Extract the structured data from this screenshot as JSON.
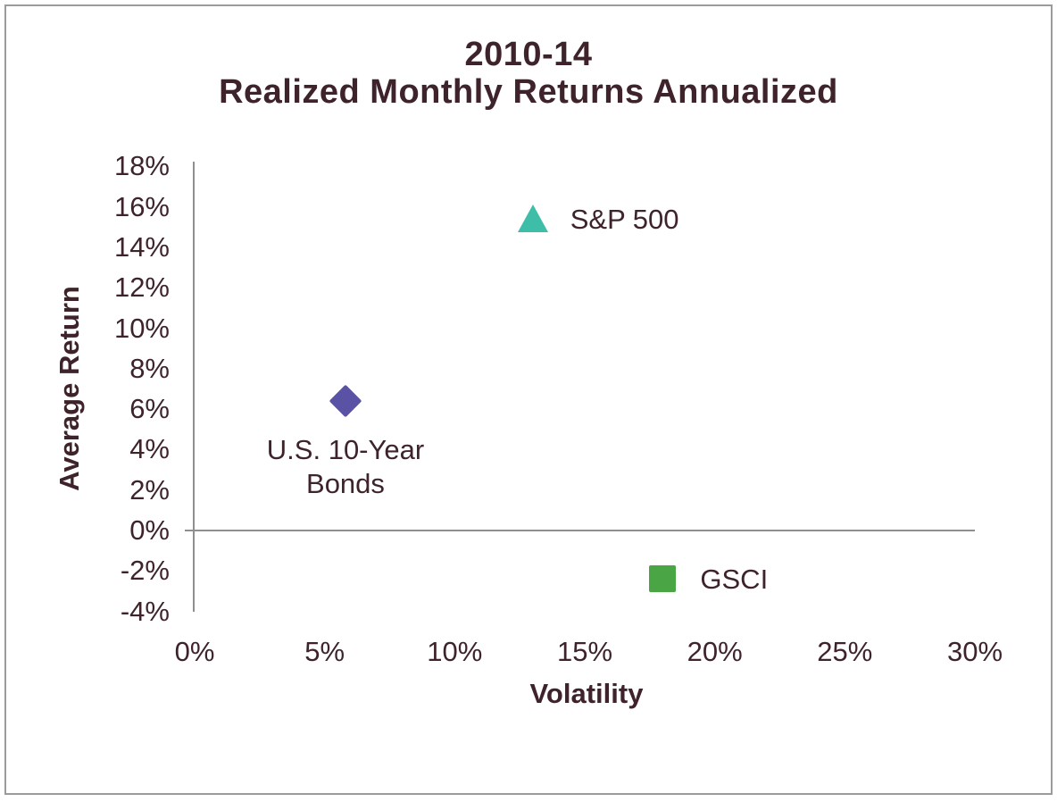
{
  "canvas": {
    "background": "#FFFFFF",
    "border_color": "#9B9B9B"
  },
  "chart_data": {
    "type": "scatter",
    "title_line1": "2010-14",
    "title_line2": "Realized Monthly Returns Annualized",
    "xlabel": "Volatility",
    "ylabel": "Average Return",
    "xlim": [
      0,
      30
    ],
    "ylim": [
      -4,
      18
    ],
    "grid": false,
    "legend_position": "labels-next-to-points",
    "text_color": "#3E242A",
    "axis_color": "#8F8F8F",
    "x_ticks": {
      "values": [
        0,
        5,
        10,
        15,
        20,
        25,
        30
      ],
      "labels": [
        "0%",
        "5%",
        "10%",
        "15%",
        "20%",
        "25%",
        "30%"
      ]
    },
    "y_ticks": {
      "values": [
        18,
        16,
        14,
        12,
        10,
        8,
        6,
        4,
        2,
        0,
        -2,
        -4
      ],
      "labels": [
        "18%",
        "16%",
        "14%",
        "12%",
        "10%",
        "8%",
        "6%",
        "4%",
        "2%",
        "0%",
        "-2%",
        "-4%"
      ]
    },
    "series": [
      {
        "name": "S&P 500",
        "x": 13.0,
        "y": 15.4,
        "marker": "triangle",
        "color": "#3EBEA9",
        "label_position": "right"
      },
      {
        "name": "U.S. 10-Year Bonds",
        "label_lines": [
          "U.S. 10-Year",
          "Bonds"
        ],
        "x": 5.8,
        "y": 6.4,
        "marker": "diamond",
        "color": "#5A53A5",
        "label_position": "below"
      },
      {
        "name": "GSCI",
        "x": 18.0,
        "y": -2.4,
        "marker": "square",
        "color": "#4AA545",
        "label_position": "right"
      }
    ]
  }
}
